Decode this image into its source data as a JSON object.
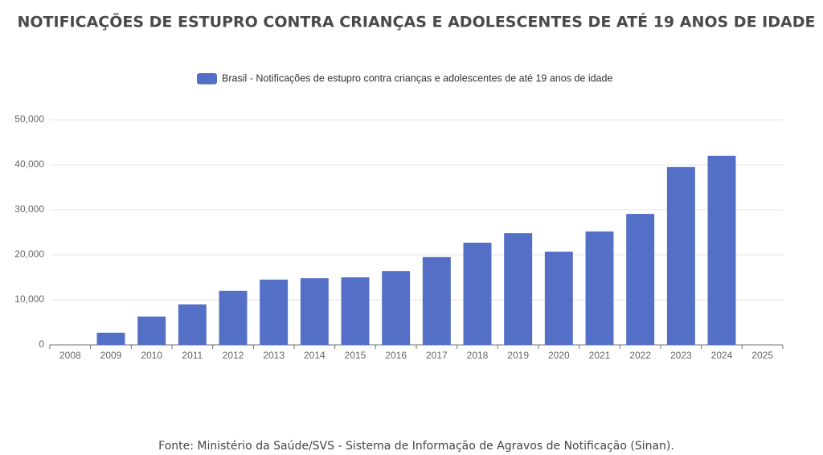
{
  "chart_data": {
    "type": "bar",
    "title": "NOTIFICAÇÕES DE ESTUPRO CONTRA CRIANÇAS E ADOLESCENTES DE ATÉ 19 ANOS DE IDADE",
    "categories": [
      "2008",
      "2009",
      "2010",
      "2011",
      "2012",
      "2013",
      "2014",
      "2015",
      "2016",
      "2017",
      "2018",
      "2019",
      "2020",
      "2021",
      "2022",
      "2023",
      "2024",
      "2025"
    ],
    "series": [
      {
        "name": "Brasil - Notificações de estupro contra crianças e adolescentes de até 19 anos de idade",
        "color": "#5470c6",
        "values": [
          null,
          2700,
          6300,
          9000,
          12000,
          14500,
          14800,
          15000,
          16400,
          19500,
          22700,
          24800,
          20700,
          25200,
          29100,
          39500,
          42000,
          null
        ]
      }
    ],
    "ylim": [
      0,
      50000
    ],
    "yticks": [
      0,
      {
        "value": 10000,
        "label": "10,000"
      },
      {
        "value": 20000,
        "label": "20,000"
      },
      {
        "value": 30000,
        "label": "30,000"
      },
      {
        "value": 40000,
        "label": "40,000"
      },
      {
        "value": 50000,
        "label": "50,000"
      }
    ],
    "grid": true,
    "legend": "top",
    "source": "Fonte: Ministério da Saúde/SVS - Sistema de Informação de Agravos de Notificação (Sinan)."
  }
}
